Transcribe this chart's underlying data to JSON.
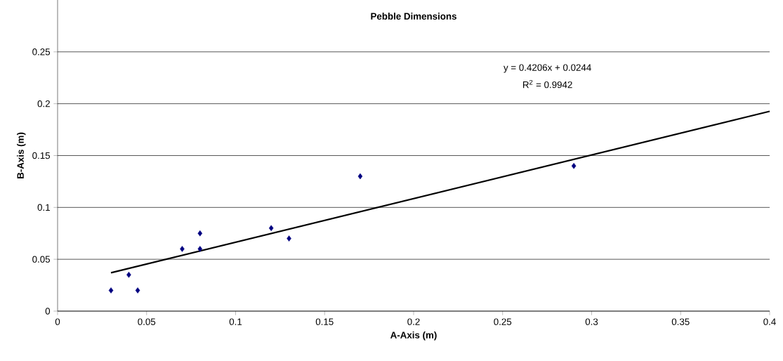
{
  "chart_data": {
    "type": "scatter",
    "title": "Pebble Dimensions",
    "xlabel": "A-Axis (m)",
    "ylabel": "B-Axis (m)",
    "annotations": [
      "y = 0.4206x + 0.0244",
      "R$^{2}$ = 0.9942"
    ],
    "xlim": [
      0,
      0.4
    ],
    "ylim": [
      0,
      0.3
    ],
    "xticks": [
      0,
      0.05,
      0.1,
      0.15,
      0.2,
      0.25,
      0.3,
      0.35,
      0.4
    ],
    "yticks": [
      0,
      0.05,
      0.1,
      0.15,
      0.2,
      0.25
    ],
    "grid": "y",
    "series": [
      {
        "color": "#000080",
        "marker": "diamond",
        "x": [
          0.03,
          0.04,
          0.045,
          0.07,
          0.08,
          0.08,
          0.12,
          0.13,
          0.17,
          0.29
        ],
        "values": [
          0.02,
          0.035,
          0.02,
          0.06,
          0.075,
          0.06,
          0.08,
          0.07,
          0.13,
          0.14
        ]
      },
      {
        "type": "line",
        "color": "#000000",
        "marker": "none",
        "line_style": "solid",
        "x": [
          0.03,
          0.4
        ],
        "values": [
          0.037,
          0.1926
        ]
      }
    ]
  }
}
